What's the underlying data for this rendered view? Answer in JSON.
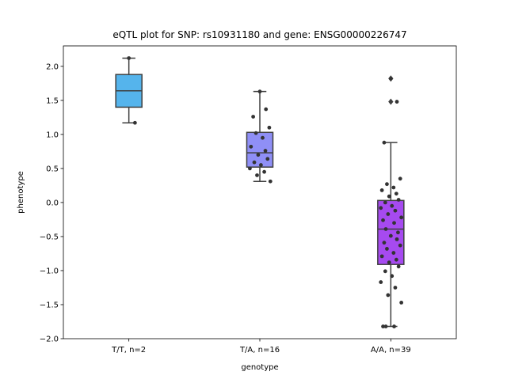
{
  "chart_data": {
    "type": "box",
    "title": "eQTL plot for SNP: rs10931180 and gene: ENSG00000226747",
    "xlabel": "genotype",
    "ylabel": "phenotype",
    "ylim": [
      -2.0,
      2.3
    ],
    "yticks": [
      2.0,
      1.5,
      1.0,
      0.5,
      0.0,
      -0.5,
      -1.0,
      -1.5,
      -2.0
    ],
    "ytick_labels": [
      "2.0",
      "1.5",
      "1.0",
      "0.5",
      "0.0",
      "−0.5",
      "−1.0",
      "−1.5",
      "−2.0"
    ],
    "categories": [
      "T/T, n=2",
      "T/A, n=16",
      "A/A, n=39"
    ],
    "grid": false,
    "groups": [
      {
        "category": "T/T, n=2",
        "color": "#55b4ec",
        "q1": 1.4,
        "median": 1.64,
        "q3": 1.88,
        "whisker_low": 1.17,
        "whisker_high": 2.12,
        "outliers": [],
        "points": [
          2.12,
          1.17
        ]
      },
      {
        "category": "T/A, n=16",
        "color": "#8f8ff6",
        "q1": 0.52,
        "median": 0.73,
        "q3": 1.03,
        "whisker_low": 0.31,
        "whisker_high": 1.63,
        "outliers": [],
        "points": [
          1.63,
          1.37,
          1.26,
          1.1,
          1.02,
          0.95,
          0.82,
          0.76,
          0.7,
          0.64,
          0.59,
          0.55,
          0.5,
          0.45,
          0.4,
          0.31
        ]
      },
      {
        "category": "A/A, n=39",
        "color": "#a64af0",
        "q1": -0.91,
        "median": -0.39,
        "q3": 0.03,
        "whisker_low": -1.82,
        "whisker_high": 0.88,
        "outliers": [
          1.82,
          1.48
        ],
        "points": [
          1.82,
          1.48,
          0.88,
          0.35,
          0.27,
          0.22,
          0.18,
          0.13,
          0.09,
          0.04,
          0.0,
          -0.05,
          -0.08,
          -0.12,
          -0.17,
          -0.22,
          -0.26,
          -0.3,
          -0.39,
          -0.44,
          -0.49,
          -0.54,
          -0.59,
          -0.63,
          -0.68,
          -0.74,
          -0.79,
          -0.84,
          -0.88,
          -0.94,
          -1.01,
          -1.08,
          -1.17,
          -1.25,
          -1.36,
          -1.47,
          -1.82,
          -1.82,
          -1.82
        ]
      }
    ]
  }
}
